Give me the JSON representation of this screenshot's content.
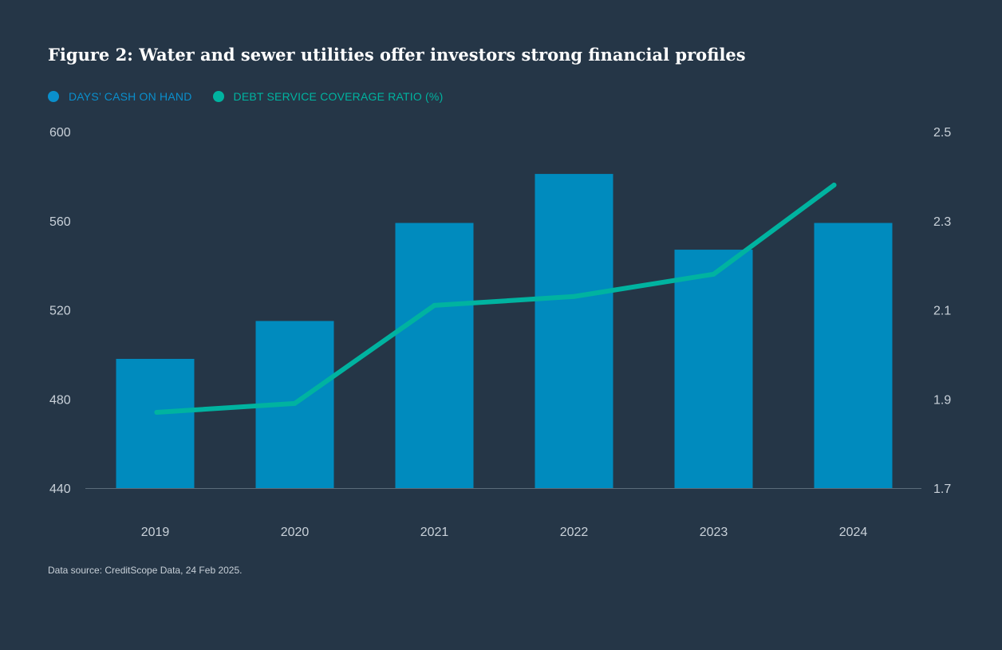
{
  "title": "Figure 2: Water and sewer utilities offer investors strong financial profiles",
  "source": "Data source: CreditScope Data, 24 Feb 2025.",
  "colors": {
    "background": "#253647",
    "bar": "#008bbe",
    "line": "#00b3a0",
    "axis": "#5b6b7a"
  },
  "legend": [
    {
      "label": "DAYS’ CASH ON HAND",
      "color": "#0a8fcc"
    },
    {
      "label": "DEBT SERVICE COVERAGE RATIO (%)",
      "color": "#00b3a0"
    }
  ],
  "chart_data": {
    "type": "bar+line",
    "categories": [
      "2019",
      "2020",
      "2021",
      "2022",
      "2023",
      "2024"
    ],
    "series": [
      {
        "name": "DAYS’ CASH ON HAND",
        "type": "bar",
        "axis": "left",
        "values": [
          498,
          515,
          559,
          581,
          547,
          559
        ]
      },
      {
        "name": "DEBT SERVICE COVERAGE RATIO (%)",
        "type": "line",
        "axis": "right",
        "values": [
          1.87,
          1.89,
          2.11,
          2.13,
          2.18,
          2.38
        ]
      }
    ],
    "y_left": {
      "ticks": [
        "600",
        "560",
        "520",
        "480",
        "440"
      ],
      "min": 440,
      "max": 600
    },
    "y_right": {
      "ticks": [
        "2.5",
        "2.3",
        "2.1",
        "1.9",
        "1.7"
      ],
      "min": 1.7,
      "max": 2.5
    },
    "grid": false,
    "legend_position": "top-left"
  }
}
